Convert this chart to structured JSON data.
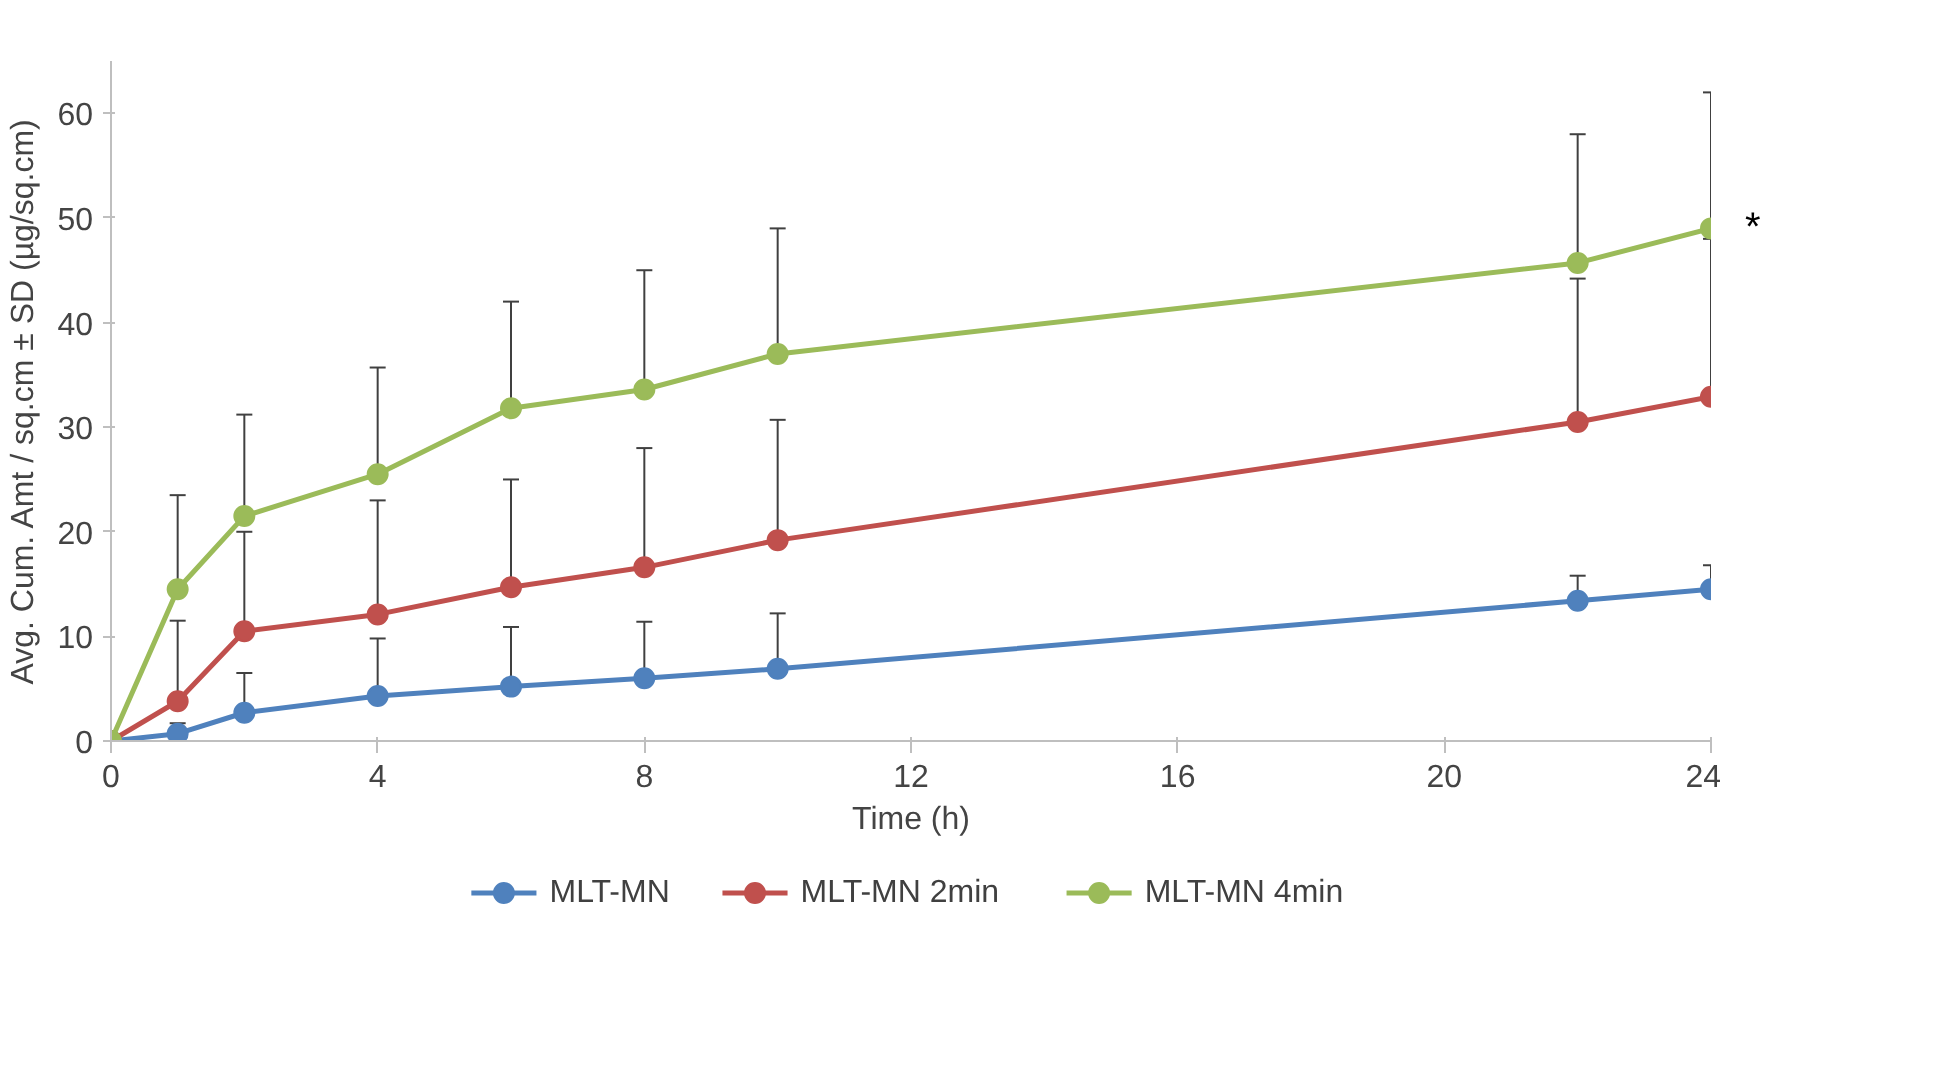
{
  "chart_data": {
    "type": "line",
    "xlabel": "Time (h)",
    "ylabel": "Avg. Cum. Amt / sq.cm ± SD (µg/sq.cm)",
    "x": [
      0,
      1,
      2,
      4,
      6,
      8,
      10,
      22,
      24
    ],
    "series": [
      {
        "name": "MLT-MN",
        "color": "#4f81bd",
        "values": [
          0,
          0.7,
          2.7,
          4.3,
          5.2,
          6,
          6.9,
          13.4,
          14.5
        ],
        "errors": [
          null,
          [
            0.7,
            1.7
          ],
          [
            2.7,
            6.5
          ],
          [
            4.3,
            9.8
          ],
          [
            5.2,
            10.9
          ],
          [
            6,
            11.4
          ],
          [
            6.9,
            12.2
          ],
          [
            13.4,
            15.8
          ],
          [
            14.5,
            16.8
          ]
        ]
      },
      {
        "name": "MLT-MN 2min",
        "color": "#c0504d",
        "values": [
          0,
          3.8,
          10.5,
          12.1,
          14.7,
          16.6,
          19.2,
          30.5,
          32.9
        ],
        "errors": [
          null,
          [
            3.8,
            11.5
          ],
          [
            10.5,
            20
          ],
          [
            12.1,
            23
          ],
          [
            14.7,
            25
          ],
          [
            16.6,
            28
          ],
          [
            19.2,
            30.7
          ],
          [
            30.5,
            44.2
          ],
          [
            32.9,
            48
          ]
        ]
      },
      {
        "name": "MLT-MN 4min",
        "color": "#9bbb59",
        "values": [
          0,
          14.5,
          21.5,
          25.5,
          31.8,
          33.6,
          37,
          45.7,
          49
        ],
        "errors": [
          null,
          [
            14.5,
            23.5
          ],
          [
            21.5,
            31.2
          ],
          [
            25.5,
            35.7
          ],
          [
            31.8,
            42
          ],
          [
            33.6,
            45
          ],
          [
            37,
            49
          ],
          [
            45.7,
            58
          ],
          [
            49,
            62
          ]
        ]
      }
    ],
    "xlim": [
      0,
      24
    ],
    "xticks": [
      0,
      4,
      8,
      12,
      16,
      20,
      24
    ],
    "ylim": [
      0,
      65
    ],
    "yticks": [
      0,
      10,
      20,
      30,
      40,
      50,
      60
    ],
    "grid": false,
    "legend": "bottom",
    "marker": "circle",
    "line_style": "solid",
    "annotations": [
      "*"
    ]
  }
}
